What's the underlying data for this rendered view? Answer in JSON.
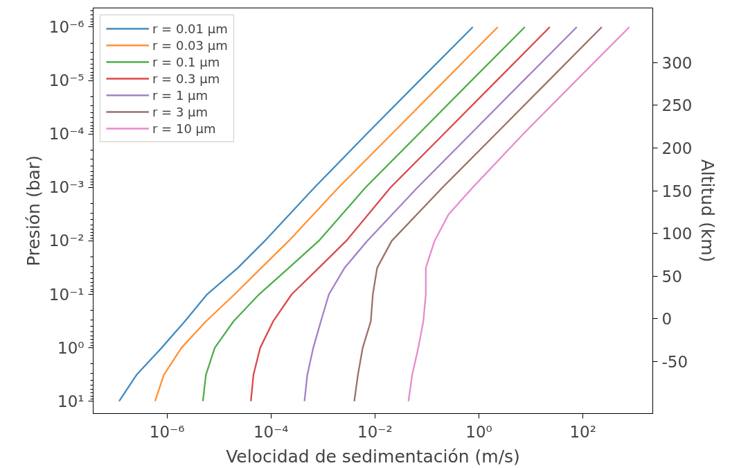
{
  "chart_data": {
    "type": "line",
    "xlabel": "Velocidad de sedimentación (m/s)",
    "ylabel": "Presión (bar)",
    "y2label": "Altitud (km)",
    "log": "xy",
    "grid": false,
    "legend": "top left",
    "marker": "none",
    "line_style": "solid",
    "xlim": [
      3.8e-08,
      2200
    ],
    "ylim": [
      17,
      4.4e-07
    ],
    "y2lim": [
      -111,
      364
    ],
    "xticks": [
      {
        "value": 1e-06,
        "label": "10⁻⁶"
      },
      {
        "value": 0.0001,
        "label": "10⁻⁴"
      },
      {
        "value": 0.01,
        "label": "10⁻²"
      },
      {
        "value": 1,
        "label": "10⁰"
      },
      {
        "value": 100,
        "label": "10²"
      }
    ],
    "yticks": [
      {
        "value": 1e-06,
        "label": "10⁻⁶"
      },
      {
        "value": 1e-05,
        "label": "10⁻⁵"
      },
      {
        "value": 0.0001,
        "label": "10⁻⁴"
      },
      {
        "value": 0.001,
        "label": "10⁻³"
      },
      {
        "value": 0.01,
        "label": "10⁻²"
      },
      {
        "value": 0.1,
        "label": "10⁻¹"
      },
      {
        "value": 1,
        "label": "10⁰"
      },
      {
        "value": 10,
        "label": "10¹"
      }
    ],
    "y2ticks": [
      300,
      250,
      200,
      150,
      100,
      50,
      0,
      -50
    ],
    "series": [
      {
        "name": "r = 0.01 μm",
        "color": "#1f77b4",
        "x": [
          0.76,
          0.072,
          0.0069,
          0.00069,
          7.6e-05,
          2.3e-05,
          5.9e-06,
          2.2e-06,
          7.9e-07,
          2.6e-07,
          1.2e-07
        ],
        "values": [
          1e-06,
          1e-05,
          0.0001,
          0.001,
          0.01,
          0.032,
          0.1,
          0.32,
          1,
          3.2,
          10
        ]
      },
      {
        "name": "r = 0.03 μm",
        "color": "#ff7f0e",
        "x": [
          2.3,
          0.22,
          0.021,
          0.002,
          0.00022,
          6.5e-05,
          2e-05,
          5.6e-06,
          1.9e-06,
          8.7e-07,
          5.9e-07
        ],
        "values": [
          1e-06,
          1e-05,
          0.0001,
          0.001,
          0.01,
          0.032,
          0.1,
          0.32,
          1,
          3.2,
          10
        ]
      },
      {
        "name": "r = 0.1 μm",
        "color": "#2ca02c",
        "x": [
          7.6,
          0.72,
          0.069,
          0.0066,
          0.00083,
          0.00022,
          5.9e-05,
          1.9e-05,
          8.3e-06,
          5.6e-06,
          4.9e-06
        ],
        "values": [
          1e-06,
          1e-05,
          0.0001,
          0.001,
          0.01,
          0.032,
          0.1,
          0.32,
          1,
          3.2,
          10
        ]
      },
      {
        "name": "r = 0.3 μm",
        "color": "#d62728",
        "x": [
          23,
          2.2,
          0.21,
          0.02,
          0.0028,
          0.00083,
          0.00025,
          0.00011,
          6.2e-05,
          4.6e-05,
          4.1e-05
        ],
        "values": [
          1e-06,
          1e-05,
          0.0001,
          0.001,
          0.01,
          0.032,
          0.1,
          0.32,
          1,
          3.2,
          10
        ]
      },
      {
        "name": "r = 1 μm",
        "color": "#9467bd",
        "x": [
          76,
          7.2,
          0.69,
          0.066,
          0.0071,
          0.0026,
          0.0013,
          0.00091,
          0.00065,
          0.0005,
          0.00044
        ],
        "values": [
          1e-06,
          1e-05,
          0.0001,
          0.001,
          0.01,
          0.032,
          0.1,
          0.32,
          1,
          3.2,
          10
        ]
      },
      {
        "name": "r = 3 μm",
        "color": "#8c564b",
        "x": [
          230,
          22,
          2.1,
          0.2,
          0.021,
          0.011,
          0.0091,
          0.0083,
          0.0058,
          0.0047,
          0.004
        ],
        "values": [
          1e-06,
          1e-05,
          0.0001,
          0.001,
          0.01,
          0.032,
          0.1,
          0.32,
          1,
          3.2,
          10
        ]
      },
      {
        "name": "r = 10 μm",
        "color": "#e377c2",
        "x": [
          780,
          74,
          7.1,
          0.76,
          0.26,
          0.14,
          0.095,
          0.095,
          0.085,
          0.068,
          0.052,
          0.044
        ],
        "values": [
          1e-06,
          1e-05,
          0.0001,
          0.001,
          0.0032,
          0.01,
          0.032,
          0.1,
          0.32,
          1,
          3.2,
          10
        ]
      }
    ]
  }
}
